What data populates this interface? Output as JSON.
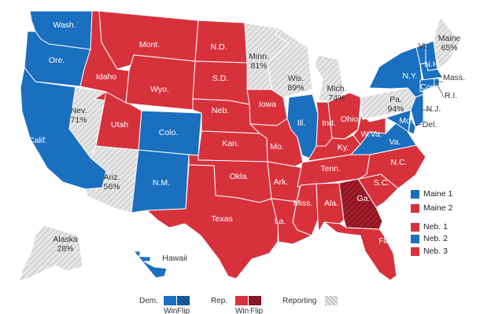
{
  "colors": {
    "dem": "#1a6fbf",
    "rep": "#d7323c",
    "reporting": "#d3d3d3",
    "flip_rep": "#a31d2b",
    "border": "#ffffff"
  },
  "states": {
    "wa": {
      "name": "Wash.",
      "status": "dem"
    },
    "or": {
      "name": "Ore.",
      "status": "dem"
    },
    "ca": {
      "name": "Calif.",
      "status": "dem"
    },
    "nv": {
      "name": "Nev.",
      "pct": "71%",
      "status": "reporting"
    },
    "id": {
      "name": "Idaho",
      "status": "rep"
    },
    "mt": {
      "name": "Mont.",
      "status": "rep"
    },
    "wy": {
      "name": "Wyo.",
      "status": "rep"
    },
    "ut": {
      "name": "Utah",
      "status": "rep"
    },
    "co": {
      "name": "Colo.",
      "status": "dem"
    },
    "az": {
      "name": "Ariz.",
      "pct": "56%",
      "status": "reporting"
    },
    "nm": {
      "name": "N.M.",
      "status": "dem"
    },
    "nd": {
      "name": "N.D.",
      "status": "rep"
    },
    "sd": {
      "name": "S.D.",
      "status": "rep"
    },
    "ne": {
      "name": "Neb.",
      "status": "rep"
    },
    "ks": {
      "name": "Kan.",
      "status": "rep"
    },
    "ok": {
      "name": "Okla.",
      "status": "rep"
    },
    "tx": {
      "name": "Texas",
      "status": "rep"
    },
    "mn": {
      "name": "Minn.",
      "pct": "81%",
      "status": "reporting"
    },
    "ia": {
      "name": "Iowa",
      "status": "rep"
    },
    "mo": {
      "name": "Mo.",
      "status": "rep"
    },
    "ar": {
      "name": "Ark.",
      "status": "rep"
    },
    "la": {
      "name": "La.",
      "status": "rep"
    },
    "wi": {
      "name": "Wis.",
      "pct": "89%",
      "status": "reporting"
    },
    "il": {
      "name": "Ill.",
      "status": "dem"
    },
    "mi": {
      "name": "Mich.",
      "pct": "74%",
      "status": "reporting"
    },
    "in": {
      "name": "Ind.",
      "status": "rep"
    },
    "oh": {
      "name": "Ohio",
      "status": "rep"
    },
    "ky": {
      "name": "Ky.",
      "status": "rep"
    },
    "tn": {
      "name": "Tenn.",
      "status": "rep"
    },
    "ms": {
      "name": "Miss.",
      "status": "rep"
    },
    "al": {
      "name": "Ala.",
      "status": "rep"
    },
    "ga": {
      "name": "Ga.",
      "status": "flip_rep"
    },
    "fl": {
      "name": "Fla.",
      "status": "rep"
    },
    "sc": {
      "name": "S.C.",
      "status": "rep"
    },
    "nc": {
      "name": "N.C.",
      "status": "rep"
    },
    "va": {
      "name": "Va.",
      "status": "dem"
    },
    "wv": {
      "name": "W.Va.",
      "status": "rep"
    },
    "pa": {
      "name": "Pa.",
      "pct": "94%",
      "status": "reporting"
    },
    "ny": {
      "name": "N.Y.",
      "status": "dem"
    },
    "vt": {
      "name": "Vt.",
      "status": "dem"
    },
    "nh": {
      "name": "N.H.",
      "status": "dem"
    },
    "me": {
      "name": "Maine",
      "pct": "65%",
      "status": "reporting"
    },
    "ma": {
      "name": "Mass.",
      "status": "dem"
    },
    "ri": {
      "name": "R.I.",
      "status": "dem"
    },
    "ct": {
      "name": "Conn.",
      "status": "dem"
    },
    "nj": {
      "name": "N.J.",
      "status": "dem"
    },
    "de": {
      "name": "Del.",
      "status": "dem"
    },
    "md": {
      "name": "Md.",
      "status": "dem"
    },
    "ak": {
      "name": "Alaska",
      "pct": "28%",
      "status": "reporting"
    },
    "hi": {
      "name": "Hawaii",
      "status": "dem"
    }
  },
  "districts": [
    {
      "label": "Maine 1",
      "status": "dem"
    },
    {
      "label": "Maine 2",
      "status": "rep"
    },
    {
      "label": "Neb. 1",
      "status": "rep"
    },
    {
      "label": "Neb. 2",
      "status": "dem"
    },
    {
      "label": "Neb. 3",
      "status": "rep"
    }
  ],
  "legend": {
    "dem_label": "Dem.",
    "rep_label": "Rep.",
    "reporting_label": "Reporting",
    "win_label": "Win",
    "flip_label": "Flip"
  }
}
